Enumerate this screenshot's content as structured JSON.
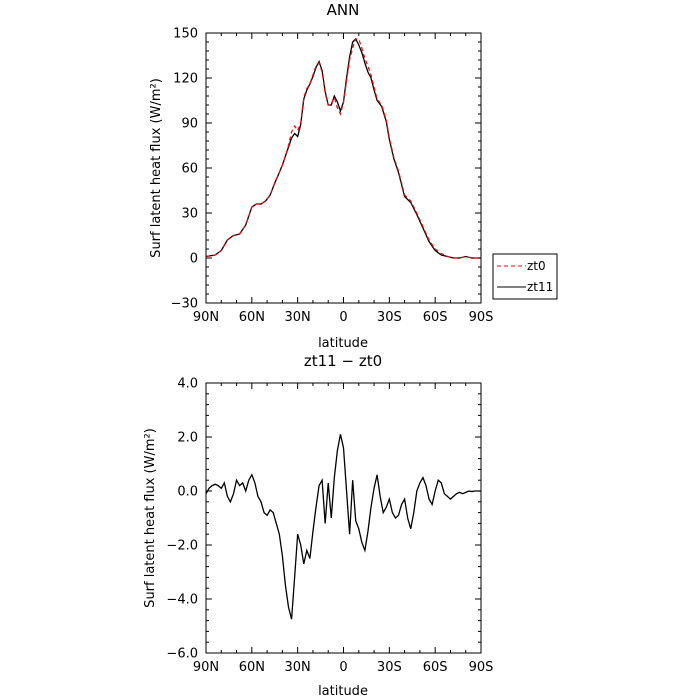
{
  "chart_data": [
    {
      "type": "line",
      "title": "ANN",
      "xlabel": "latitude",
      "ylabel": "Surf latent heat flux (W/m²)",
      "xlim": [
        90,
        -90
      ],
      "ylim": [
        -30,
        150
      ],
      "xticks": [
        90,
        60,
        30,
        0,
        -30,
        -60,
        -90
      ],
      "xtick_labels": [
        "90N",
        "60N",
        "30N",
        "0",
        "30S",
        "60S",
        "90S"
      ],
      "yticks": [
        -30,
        0,
        30,
        60,
        90,
        120,
        150
      ],
      "ytick_labels": [
        "−30",
        "0",
        "30",
        "60",
        "90",
        "120",
        "150"
      ],
      "legend": {
        "placement": "right",
        "entries": [
          "zt0",
          "zt11"
        ]
      },
      "series": [
        {
          "name": "zt0",
          "color": "#ff0000",
          "dash": "dashed",
          "x": [
            90,
            84,
            80,
            76,
            72,
            68,
            64,
            60,
            57,
            54,
            51,
            48,
            45,
            42,
            40,
            38,
            36,
            34,
            32,
            30,
            28,
            26,
            24,
            22,
            20,
            18,
            16,
            14,
            12,
            10,
            8,
            6,
            4,
            2,
            0,
            -2,
            -4,
            -6,
            -8,
            -10,
            -12,
            -14,
            -16,
            -18,
            -20,
            -22,
            -25,
            -28,
            -30,
            -33,
            -36,
            -40,
            -44,
            -48,
            -52,
            -56,
            -60,
            -64,
            -68,
            -72,
            -76,
            -80,
            -84,
            -90
          ],
          "y": [
            1,
            2,
            5,
            12,
            15,
            16,
            22,
            34,
            36,
            36,
            38,
            42,
            50,
            57,
            62,
            68,
            75,
            84,
            88,
            85,
            90,
            107,
            113,
            116,
            122,
            128,
            130,
            124,
            110,
            102,
            103,
            107,
            100,
            96,
            104,
            118,
            132,
            140,
            146,
            146,
            140,
            133,
            128,
            122,
            114,
            106,
            102,
            92,
            80,
            67,
            58,
            42,
            38,
            30,
            21,
            12,
            6,
            3,
            1,
            0,
            0,
            1,
            0,
            0
          ]
        },
        {
          "name": "zt11",
          "color": "#000000",
          "dash": "solid",
          "x": [
            90,
            84,
            80,
            76,
            72,
            68,
            64,
            60,
            57,
            54,
            51,
            48,
            45,
            42,
            40,
            38,
            36,
            34,
            32,
            30,
            28,
            26,
            24,
            22,
            20,
            18,
            16,
            14,
            12,
            10,
            8,
            6,
            4,
            2,
            0,
            -2,
            -4,
            -6,
            -8,
            -10,
            -12,
            -14,
            -16,
            -18,
            -20,
            -22,
            -25,
            -28,
            -30,
            -33,
            -36,
            -40,
            -44,
            -48,
            -52,
            -56,
            -60,
            -64,
            -68,
            -72,
            -76,
            -80,
            -84,
            -90
          ],
          "y": [
            1,
            2,
            5,
            12,
            15,
            16,
            22,
            34,
            36,
            36,
            38,
            42,
            50,
            57,
            62,
            68,
            74,
            80,
            83,
            81,
            89,
            106,
            112,
            116,
            121,
            127,
            131,
            125,
            111,
            102,
            102,
            108,
            104,
            98,
            104,
            120,
            134,
            144,
            146,
            142,
            137,
            130,
            124,
            120,
            112,
            105,
            101,
            91,
            79,
            66,
            57,
            41,
            37,
            29,
            20,
            11,
            5,
            2,
            1,
            0,
            0,
            1,
            0,
            0
          ]
        }
      ]
    },
    {
      "type": "line",
      "title": "zt11 − zt0",
      "xlabel": "latitude",
      "ylabel": "Surf latent heat flux (W/m²)",
      "xlim": [
        90,
        -90
      ],
      "ylim": [
        -6,
        4
      ],
      "xticks": [
        90,
        60,
        30,
        0,
        -30,
        -60,
        -90
      ],
      "xtick_labels": [
        "90N",
        "60N",
        "30N",
        "0",
        "30S",
        "60S",
        "90S"
      ],
      "yticks": [
        -6,
        -4,
        -2,
        0,
        2,
        4
      ],
      "ytick_labels": [
        "−6.0",
        "−4.0",
        "−2.0",
        "0.0",
        "2.0",
        "4.0"
      ],
      "series": [
        {
          "color": "#000000",
          "dash": "solid",
          "x": [
            90,
            88,
            86,
            84,
            82,
            80,
            78,
            76,
            74,
            72,
            70,
            68,
            66,
            64,
            62,
            60,
            58,
            56,
            54,
            52,
            50,
            48,
            46,
            44,
            42,
            40,
            38,
            36,
            34,
            32,
            30,
            28,
            26,
            24,
            22,
            20,
            18,
            16,
            14,
            12,
            10,
            8,
            6,
            4,
            2,
            0,
            -2,
            -4,
            -6,
            -8,
            -10,
            -12,
            -14,
            -16,
            -18,
            -20,
            -22,
            -24,
            -26,
            -28,
            -30,
            -32,
            -34,
            -36,
            -38,
            -40,
            -42,
            -44,
            -46,
            -48,
            -50,
            -52,
            -54,
            -56,
            -58,
            -60,
            -62,
            -64,
            -66,
            -68,
            -70,
            -72,
            -74,
            -76,
            -78,
            -80,
            -82,
            -84,
            -86,
            -88,
            -90
          ],
          "y": [
            -0.1,
            0.1,
            0.2,
            0.25,
            0.2,
            0.1,
            0.3,
            -0.2,
            -0.4,
            -0.1,
            0.4,
            0.2,
            0.3,
            0.0,
            0.4,
            0.6,
            0.3,
            -0.2,
            -0.4,
            -0.8,
            -0.9,
            -0.7,
            -0.8,
            -1.2,
            -1.6,
            -2.4,
            -3.5,
            -4.3,
            -4.75,
            -3.2,
            -1.6,
            -2.0,
            -2.7,
            -2.2,
            -2.5,
            -1.5,
            -0.6,
            0.2,
            0.4,
            -1.2,
            0.3,
            -1.0,
            0.5,
            1.5,
            2.1,
            1.6,
            0.0,
            -1.6,
            0.4,
            -1.1,
            -1.4,
            -1.9,
            -2.2,
            -1.5,
            -0.6,
            0.1,
            0.6,
            -0.2,
            -0.8,
            -0.6,
            -0.3,
            -0.8,
            -1.0,
            -0.9,
            -0.5,
            -0.3,
            -1.0,
            -1.4,
            -0.8,
            0.0,
            0.3,
            0.5,
            0.2,
            -0.3,
            -0.5,
            0.0,
            0.4,
            0.3,
            -0.1,
            -0.2,
            -0.3,
            -0.2,
            -0.1,
            -0.05,
            -0.1,
            -0.05,
            0.0,
            -0.02,
            0.0,
            0.0,
            0.0
          ]
        }
      ]
    }
  ]
}
